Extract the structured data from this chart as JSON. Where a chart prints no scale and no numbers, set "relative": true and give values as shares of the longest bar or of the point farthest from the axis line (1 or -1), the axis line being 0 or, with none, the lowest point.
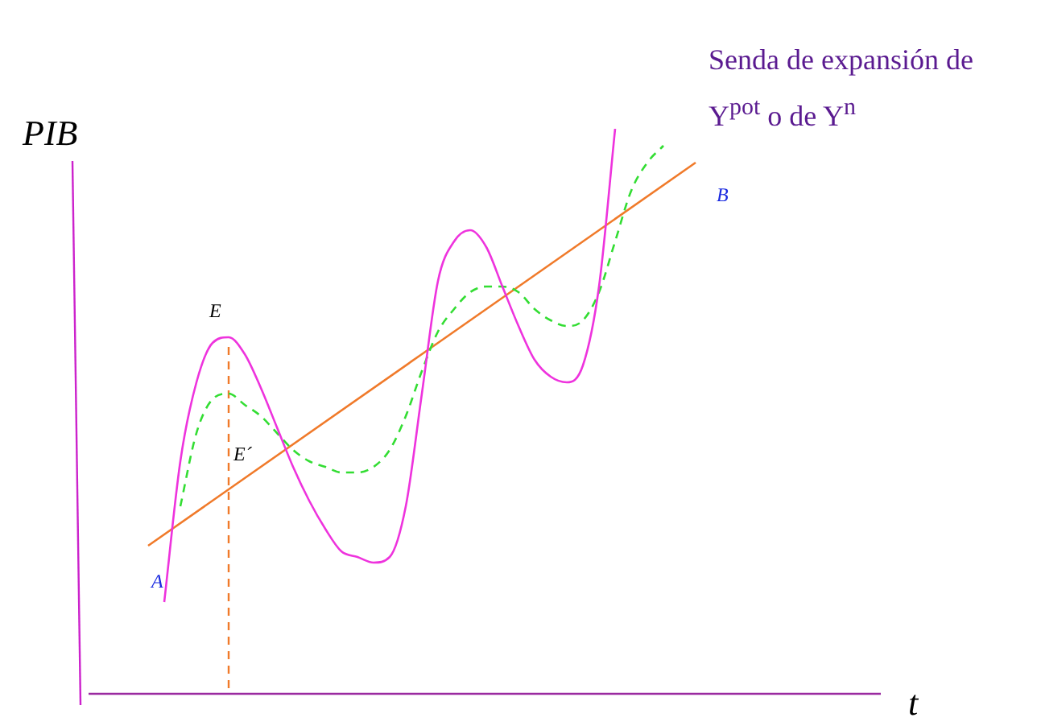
{
  "chart_data": {
    "type": "line",
    "relative": true,
    "ylabel": "PIB",
    "tick_labels": false,
    "grid": false,
    "legend": false,
    "marker": "none",
    "categories": [
      null,
      null,
      null,
      null,
      null,
      null,
      null,
      null,
      null,
      null,
      null,
      null,
      null,
      null,
      null,
      null,
      null,
      null,
      null,
      null,
      null,
      null,
      null,
      null,
      null,
      null,
      null,
      null,
      null,
      null,
      null,
      null,
      null,
      null,
      null
    ],
    "series": [
      {
        "color": "#ee33dd",
        "line_style": "solid",
        "values": [
          null,
          0.16,
          0.41,
          0.55,
          0.62,
          0.63,
          0.6,
          0.54,
          0.47,
          0.4,
          0.34,
          0.29,
          0.25,
          0.24,
          0.23,
          0.24,
          0.33,
          0.53,
          0.73,
          0.8,
          0.82,
          0.79,
          0.72,
          0.65,
          0.59,
          0.56,
          0.55,
          0.58,
          0.72,
          1.0,
          null,
          null,
          null,
          null,
          null
        ]
      },
      {
        "color": "#33dd33",
        "line_style": "dashed",
        "values": [
          null,
          null,
          0.33,
          0.46,
          0.52,
          0.53,
          0.51,
          0.49,
          0.46,
          0.43,
          0.41,
          0.4,
          0.39,
          0.39,
          0.4,
          0.43,
          0.49,
          0.57,
          0.64,
          0.68,
          0.71,
          0.72,
          0.72,
          0.71,
          0.68,
          0.66,
          0.65,
          0.66,
          0.71,
          0.8,
          0.89,
          0.94,
          0.97,
          null,
          null
        ]
      },
      {
        "color": "#f07a2a",
        "line_style": "solid",
        "values": [
          0.26,
          null,
          null,
          null,
          null,
          null,
          null,
          null,
          null,
          null,
          null,
          null,
          null,
          null,
          null,
          null,
          null,
          null,
          null,
          null,
          null,
          null,
          null,
          null,
          null,
          null,
          null,
          null,
          null,
          null,
          null,
          null,
          null,
          null,
          0.94
        ]
      }
    ],
    "annotations": [
      "Senda de expansión de Y$^{pot}$ o de Y$^{n}$",
      "E",
      "E´",
      "A",
      "B",
      "t"
    ]
  }
}
